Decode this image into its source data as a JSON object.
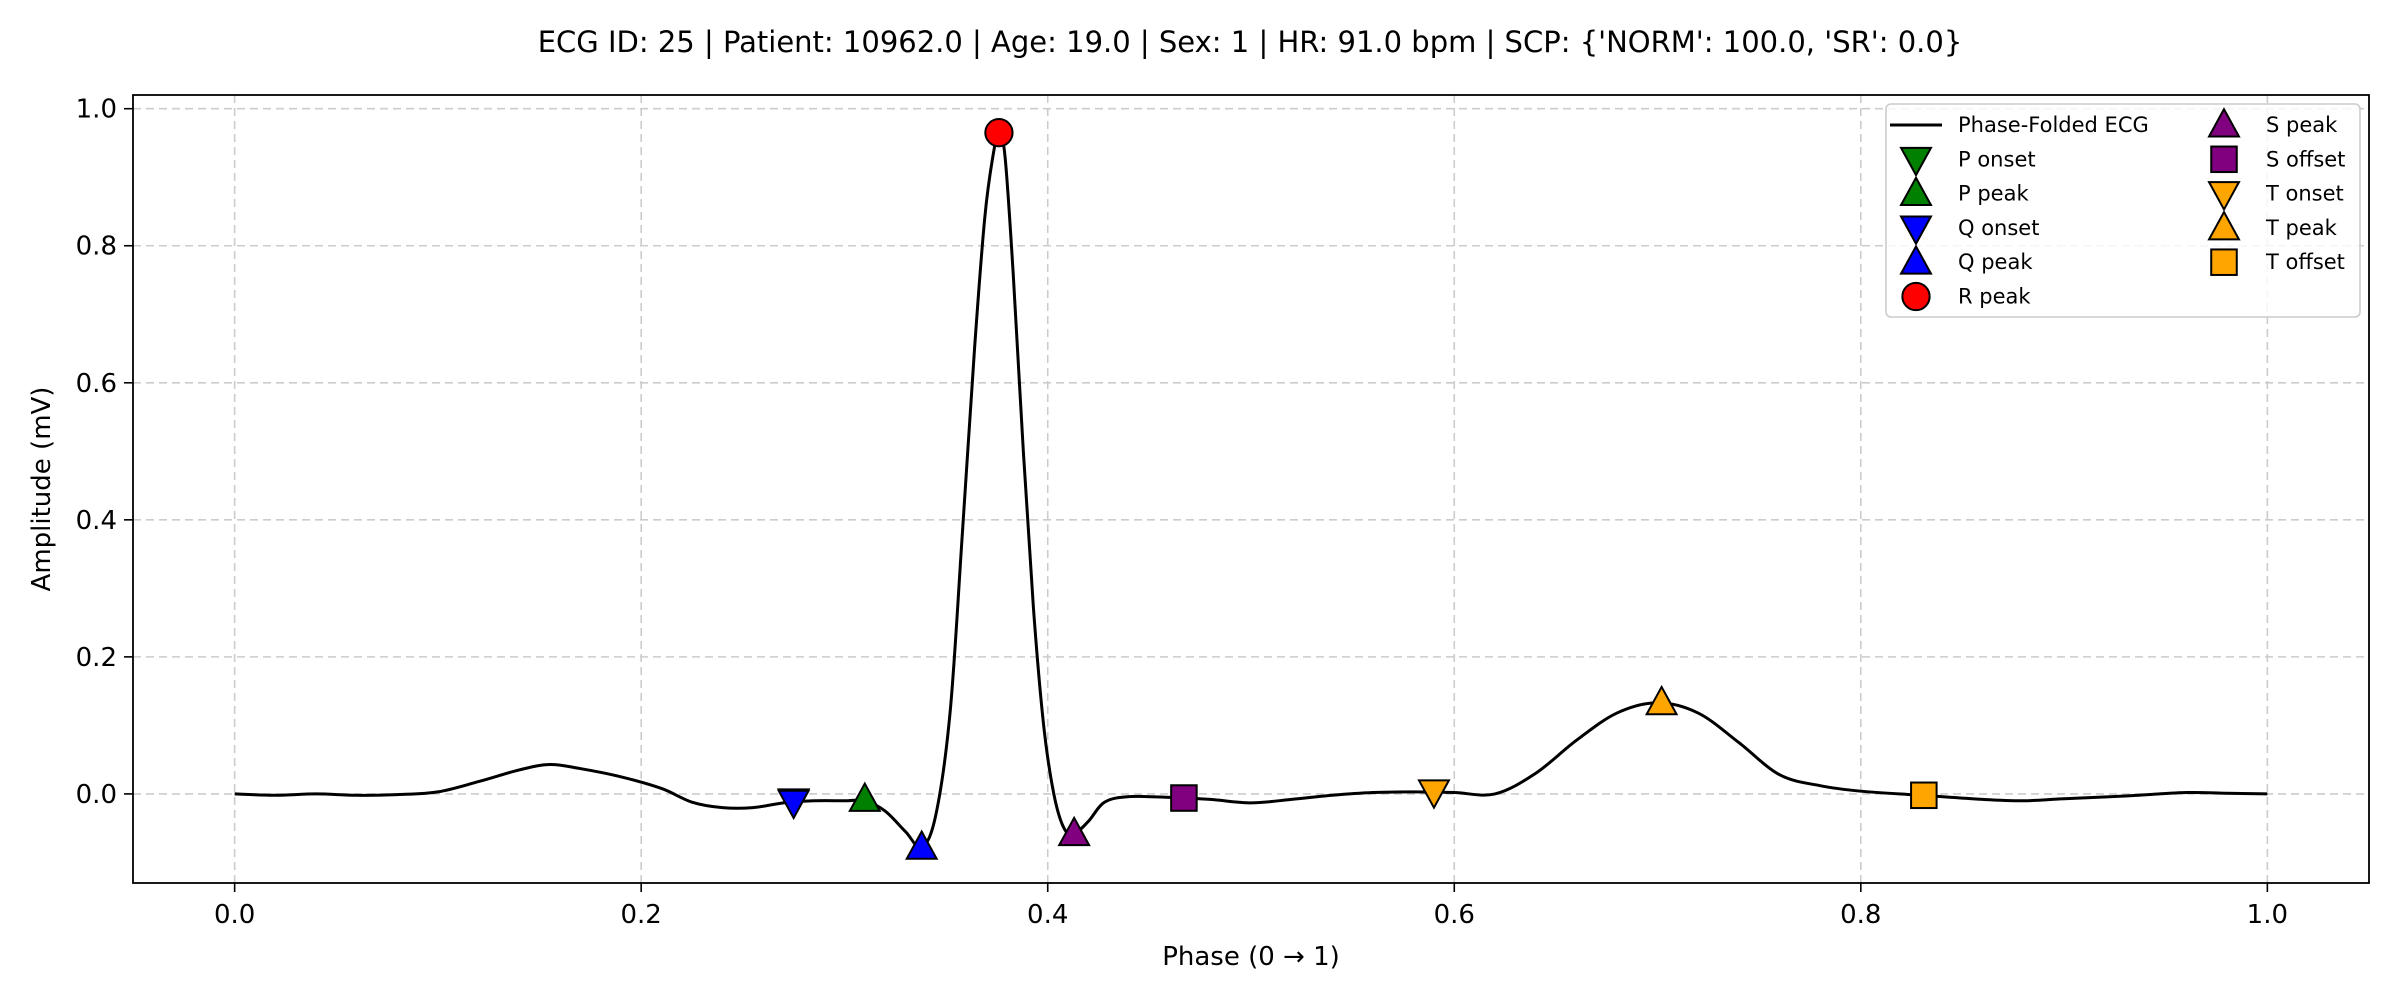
{
  "chart_data": {
    "type": "line",
    "title": "ECG ID: 25 | Patient: 10962.0 | Age: 19.0 | Sex: 1 | HR: 91.0 bpm | SCP: {'NORM': 100.0, 'SR': 0.0}",
    "xlabel": "Phase (0 → 1)",
    "ylabel": "Amplitude (mV)",
    "xlim": [
      -0.05,
      1.05
    ],
    "ylim": [
      -0.13,
      1.02
    ],
    "xticks": [
      0.0,
      0.2,
      0.4,
      0.6,
      0.8,
      1.0
    ],
    "yticks": [
      0.0,
      0.2,
      0.4,
      0.6,
      0.8,
      1.0
    ],
    "xtick_labels": [
      "0.0",
      "0.2",
      "0.4",
      "0.6",
      "0.8",
      "1.0"
    ],
    "ytick_labels": [
      "0.0",
      "0.2",
      "0.4",
      "0.6",
      "0.8",
      "1.0"
    ],
    "grid": true,
    "legend_position": "top-right",
    "series": [
      {
        "name": "Phase-Folded ECG",
        "color": "#000000",
        "x": [
          0.0,
          0.02,
          0.04,
          0.06,
          0.08,
          0.1,
          0.12,
          0.14,
          0.155,
          0.17,
          0.19,
          0.21,
          0.225,
          0.24,
          0.255,
          0.27,
          0.285,
          0.3,
          0.31,
          0.32,
          0.33,
          0.338,
          0.345,
          0.352,
          0.358,
          0.364,
          0.369,
          0.373,
          0.376,
          0.379,
          0.383,
          0.388,
          0.393,
          0.398,
          0.403,
          0.408,
          0.413,
          0.42,
          0.428,
          0.44,
          0.46,
          0.48,
          0.5,
          0.52,
          0.54,
          0.56,
          0.58,
          0.6,
          0.62,
          0.64,
          0.66,
          0.68,
          0.7,
          0.72,
          0.74,
          0.76,
          0.78,
          0.8,
          0.83,
          0.86,
          0.88,
          0.9,
          0.93,
          0.96,
          0.98,
          1.0
        ],
        "y": [
          0.0,
          -0.002,
          0.0,
          -0.002,
          -0.001,
          0.003,
          0.018,
          0.035,
          0.043,
          0.037,
          0.025,
          0.008,
          -0.012,
          -0.02,
          -0.02,
          -0.013,
          -0.01,
          -0.01,
          -0.01,
          -0.025,
          -0.055,
          -0.078,
          -0.03,
          0.12,
          0.38,
          0.65,
          0.84,
          0.93,
          0.965,
          0.93,
          0.76,
          0.5,
          0.27,
          0.1,
          0.0,
          -0.05,
          -0.058,
          -0.04,
          -0.012,
          -0.004,
          -0.005,
          -0.008,
          -0.013,
          -0.008,
          -0.002,
          0.002,
          0.003,
          0.002,
          0.0,
          0.03,
          0.078,
          0.118,
          0.133,
          0.118,
          0.075,
          0.028,
          0.012,
          0.004,
          -0.002,
          -0.008,
          -0.01,
          -0.007,
          -0.003,
          0.002,
          0.001,
          0.0
        ]
      }
    ],
    "markers": [
      {
        "name": "P onset",
        "x": 0.275,
        "y": -0.01,
        "shape": "triangle-down",
        "color": "#008000"
      },
      {
        "name": "P peak",
        "x": 0.31,
        "y": -0.008,
        "shape": "triangle-up",
        "color": "#008000"
      },
      {
        "name": "Q onset",
        "x": 0.275,
        "y": -0.012,
        "shape": "triangle-down",
        "color": "#0000ff"
      },
      {
        "name": "Q peak",
        "x": 0.338,
        "y": -0.078,
        "shape": "triangle-up",
        "color": "#0000ff"
      },
      {
        "name": "R peak",
        "x": 0.376,
        "y": 0.965,
        "shape": "circle",
        "color": "#ff0000"
      },
      {
        "name": "S peak",
        "x": 0.413,
        "y": -0.058,
        "shape": "triangle-up",
        "color": "#800080"
      },
      {
        "name": "S offset",
        "x": 0.467,
        "y": -0.006,
        "shape": "square",
        "color": "#800080"
      },
      {
        "name": "T onset",
        "x": 0.59,
        "y": 0.003,
        "shape": "triangle-down",
        "color": "#ffa500"
      },
      {
        "name": "T peak",
        "x": 0.702,
        "y": 0.133,
        "shape": "triangle-up",
        "color": "#ffa500"
      },
      {
        "name": "T offset",
        "x": 0.831,
        "y": -0.002,
        "shape": "square",
        "color": "#ffa500"
      }
    ],
    "legend": {
      "columns": [
        [
          {
            "label": "Phase-Folded ECG",
            "shape": "line",
            "color": "#000000"
          },
          {
            "label": "P onset",
            "shape": "triangle-down",
            "color": "#008000"
          },
          {
            "label": "P peak",
            "shape": "triangle-up",
            "color": "#008000"
          },
          {
            "label": "Q onset",
            "shape": "triangle-down",
            "color": "#0000ff"
          },
          {
            "label": "Q peak",
            "shape": "triangle-up",
            "color": "#0000ff"
          },
          {
            "label": "R peak",
            "shape": "circle",
            "color": "#ff0000"
          }
        ],
        [
          {
            "label": "S peak",
            "shape": "triangle-up",
            "color": "#800080"
          },
          {
            "label": "S offset",
            "shape": "square",
            "color": "#800080"
          },
          {
            "label": "T onset",
            "shape": "triangle-down",
            "color": "#ffa500"
          },
          {
            "label": "T peak",
            "shape": "triangle-up",
            "color": "#ffa500"
          },
          {
            "label": "T offset",
            "shape": "square",
            "color": "#ffa500"
          }
        ]
      ]
    }
  }
}
